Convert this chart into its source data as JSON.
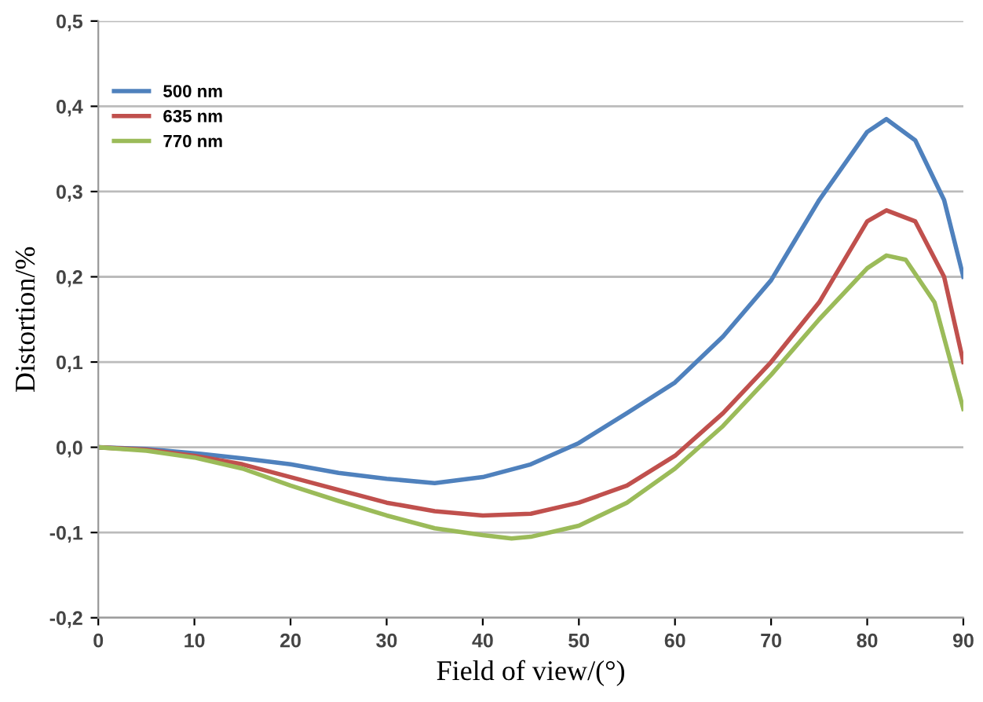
{
  "chart_data": {
    "type": "line",
    "xlabel": "Field of view/(°)",
    "ylabel": "Distortion/%",
    "xlim": [
      0,
      90
    ],
    "xticks": [
      0,
      10,
      20,
      30,
      40,
      50,
      60,
      70,
      80,
      90
    ],
    "ylim": [
      -0.2,
      0.5
    ],
    "yticks": [
      {
        "value": -0.2,
        "label": "-0,2"
      },
      {
        "value": -0.1,
        "label": "-0,1"
      },
      {
        "value": 0,
        "label": "0,0"
      },
      {
        "value": 0.1,
        "label": "0,1"
      },
      {
        "value": 0.2,
        "label": "0,2"
      },
      {
        "value": 0.3,
        "label": "0,3"
      },
      {
        "value": 0.4,
        "label": "0,4"
      },
      {
        "value": 0.5,
        "label": "0,5"
      }
    ],
    "grid": "y",
    "legend": "top left",
    "marker": "none",
    "line_style": "solid",
    "series": [
      {
        "name": "500 nm",
        "color": "#4f81bd",
        "x": [
          0,
          5,
          10,
          15,
          20,
          25,
          30,
          35,
          40,
          45,
          50,
          55,
          60,
          65,
          70,
          75,
          80,
          82,
          85,
          88,
          90
        ],
        "values": [
          0,
          -0.002,
          -0.007,
          -0.013,
          -0.02,
          -0.03,
          -0.037,
          -0.042,
          -0.035,
          -0.02,
          0.005,
          0.04,
          0.076,
          0.13,
          0.196,
          0.29,
          0.37,
          0.385,
          0.36,
          0.29,
          0.2
        ]
      },
      {
        "name": "635 nm",
        "color": "#c0504d",
        "x": [
          0,
          5,
          10,
          15,
          20,
          25,
          30,
          35,
          40,
          45,
          50,
          55,
          60,
          65,
          70,
          75,
          80,
          82,
          85,
          88,
          90
        ],
        "values": [
          0,
          -0.003,
          -0.01,
          -0.02,
          -0.035,
          -0.05,
          -0.065,
          -0.075,
          -0.08,
          -0.078,
          -0.065,
          -0.045,
          -0.01,
          0.04,
          0.1,
          0.17,
          0.265,
          0.278,
          0.265,
          0.2,
          0.1
        ]
      },
      {
        "name": "770 nm",
        "color": "#9bbb59",
        "x": [
          0,
          5,
          10,
          15,
          20,
          25,
          30,
          35,
          40,
          43,
          45,
          50,
          55,
          60,
          65,
          70,
          75,
          80,
          82,
          84,
          87,
          90
        ],
        "values": [
          0,
          -0.004,
          -0.012,
          -0.025,
          -0.045,
          -0.063,
          -0.08,
          -0.095,
          -0.103,
          -0.107,
          -0.105,
          -0.092,
          -0.065,
          -0.025,
          0.025,
          0.085,
          0.15,
          0.21,
          0.225,
          0.22,
          0.17,
          0.045
        ]
      }
    ]
  }
}
